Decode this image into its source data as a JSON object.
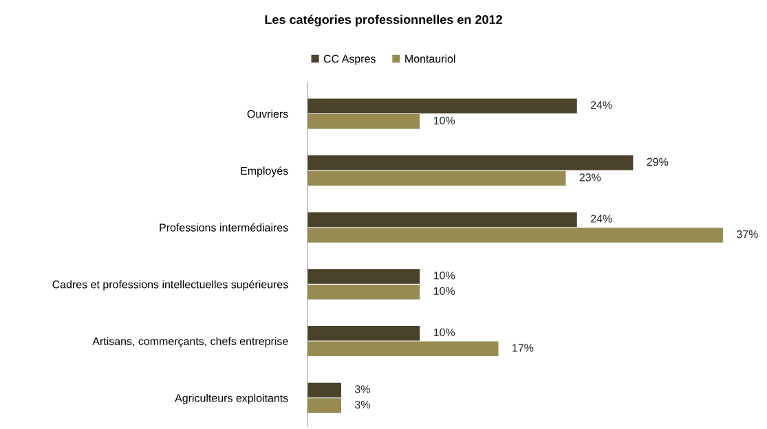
{
  "chart_data": {
    "type": "bar",
    "orientation": "horizontal",
    "title": "Les catégories professionnelles en 2012",
    "categories": [
      "Ouvriers",
      "Employés",
      "Professions intermédiaires",
      "Cadres et professions intellectuelles supérieures",
      "Artisans, commerçants, chefs entreprise",
      "Agriculteurs exploitants"
    ],
    "series": [
      {
        "name": "CC Aspres",
        "color": "#4a4229",
        "values": [
          24,
          29,
          24,
          10,
          10,
          3
        ],
        "value_labels": [
          "24%",
          "29%",
          "24%",
          "10%",
          "10%",
          "3%"
        ]
      },
      {
        "name": "Montauriol",
        "color": "#978b52",
        "values": [
          10,
          23,
          37,
          10,
          17,
          3
        ],
        "value_labels": [
          "10%",
          "23%",
          "37%",
          "10%",
          "17%",
          "3%"
        ]
      }
    ],
    "legend": "top",
    "grid": false,
    "tick_labels": "y"
  }
}
